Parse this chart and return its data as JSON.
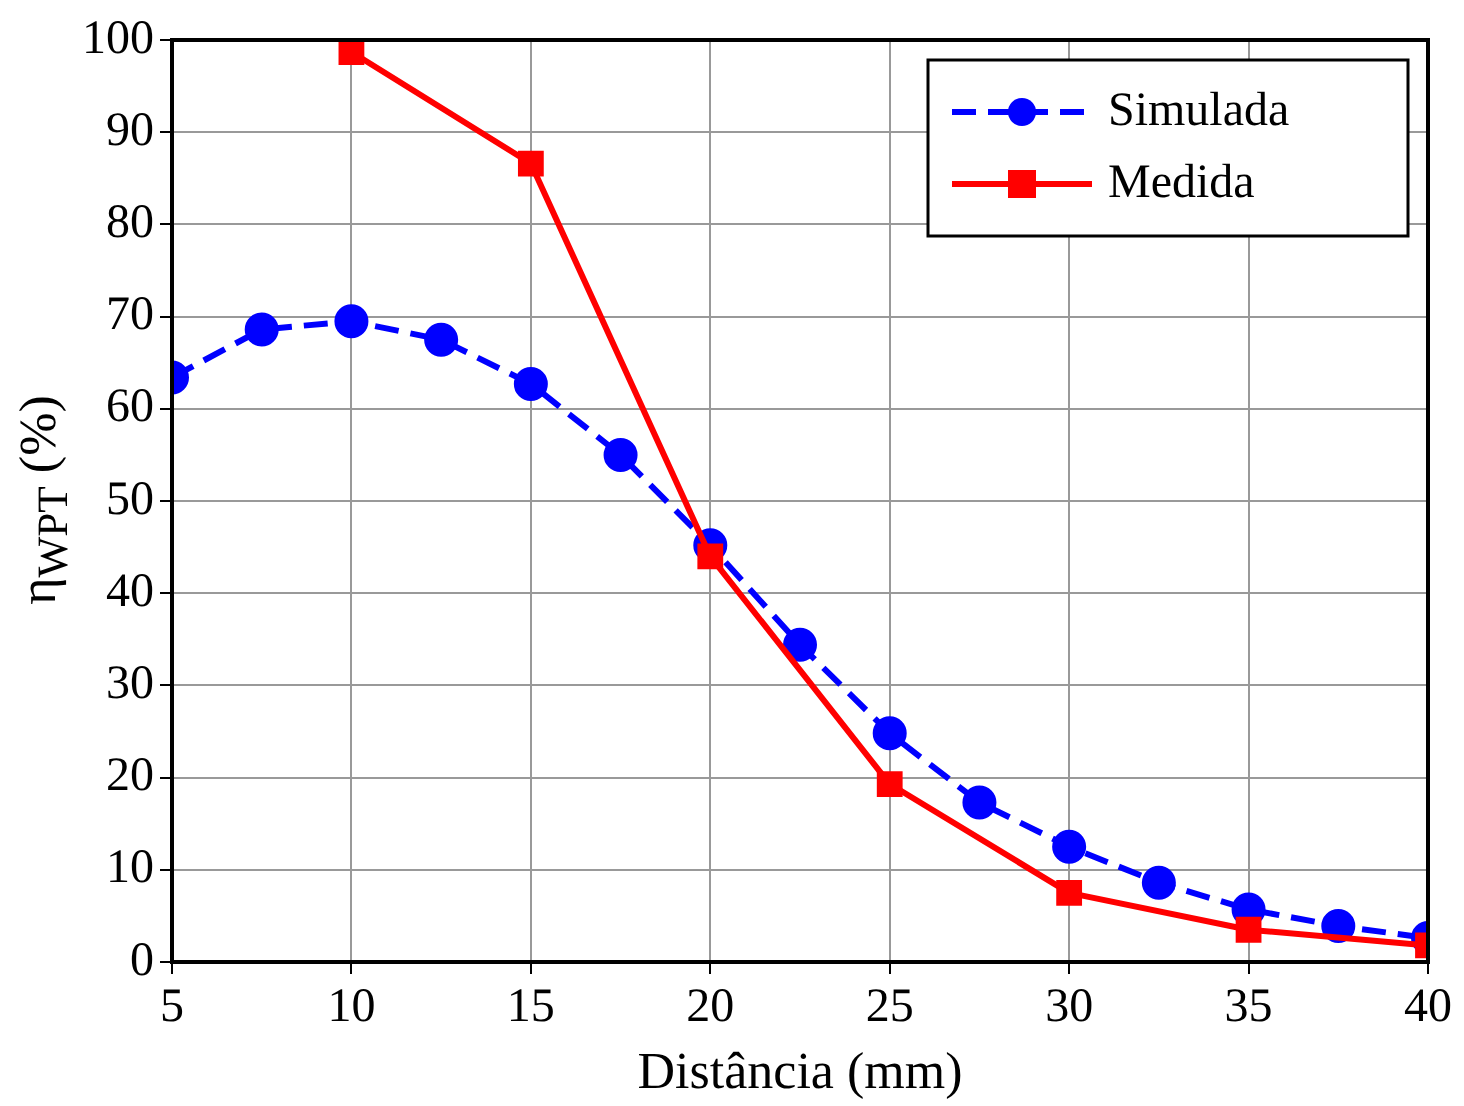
{
  "chart_data": {
    "type": "line",
    "xlabel": "Distância (mm)",
    "ylabel": "η$_{WPT}$ (%)",
    "xlim": [
      5,
      40
    ],
    "xticks": [
      5,
      10,
      15,
      20,
      25,
      30,
      35,
      40
    ],
    "ylim": [
      0,
      100
    ],
    "yticks": [
      0,
      10,
      20,
      30,
      40,
      50,
      60,
      70,
      80,
      90,
      100
    ],
    "grid": true,
    "legend": "top right",
    "series": [
      {
        "name": "Simulada",
        "color": "#0000ff",
        "marker": "circle",
        "line_style": "dashed",
        "x": [
          5,
          7.5,
          10,
          12.5,
          15,
          17.5,
          20,
          22.5,
          25,
          27.5,
          30,
          32.5,
          35,
          37.5,
          40
        ],
        "values": [
          63.4,
          68.6,
          69.5,
          67.5,
          62.7,
          55,
          45.2,
          34.4,
          24.8,
          17.3,
          12.5,
          8.6,
          5.7,
          3.9,
          2.6
        ]
      },
      {
        "name": "Medida",
        "color": "#ff0000",
        "marker": "square",
        "line_style": "solid",
        "x": [
          10,
          15,
          20,
          25,
          30,
          35,
          40
        ],
        "values": [
          98.7,
          86.6,
          44,
          19.3,
          7.5,
          3.5,
          1.8
        ]
      }
    ]
  }
}
